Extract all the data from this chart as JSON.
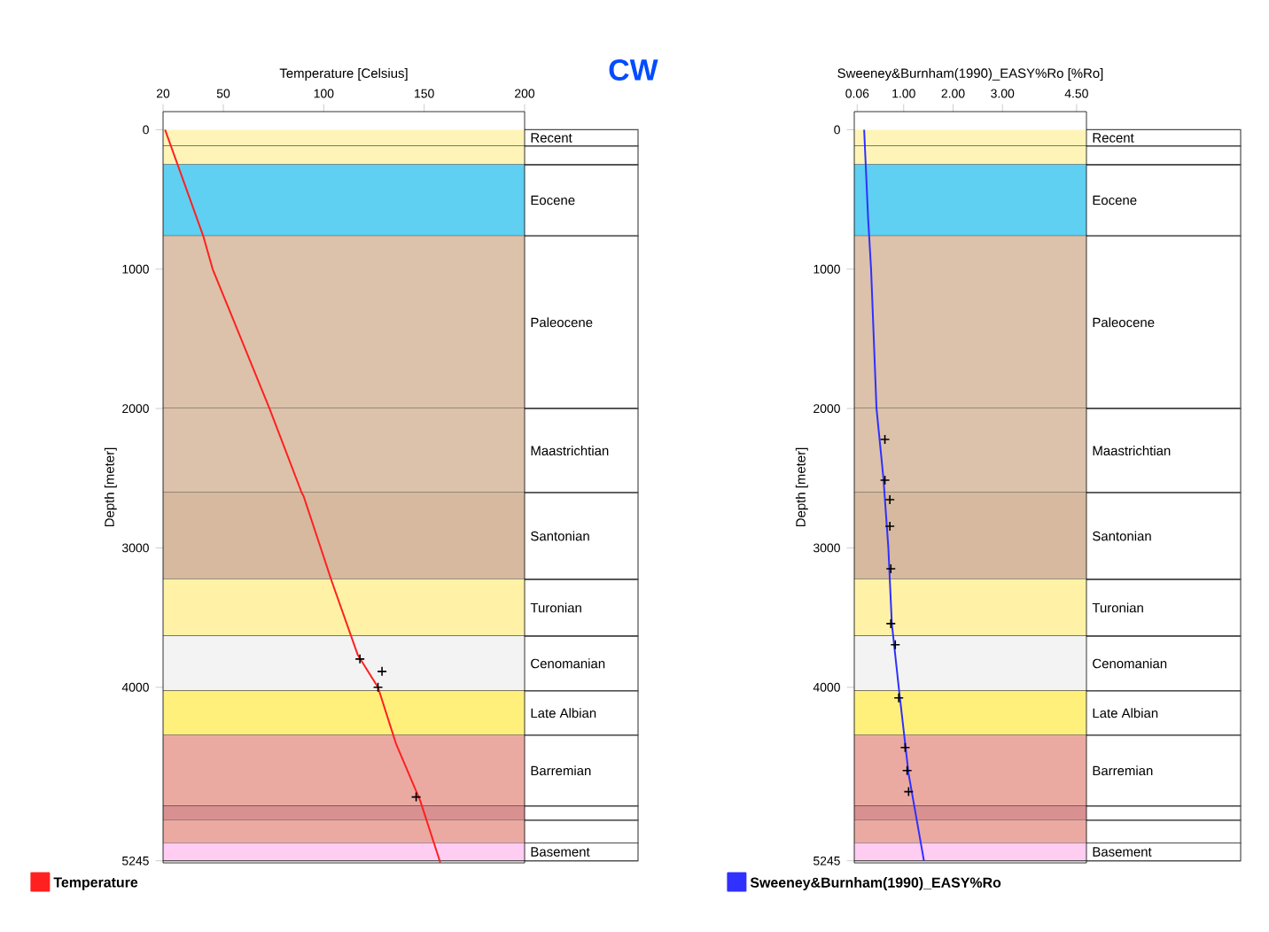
{
  "chart_data": [
    {
      "type": "line",
      "xlabel": "Temperature [Celsius]",
      "ylabel": "Depth [meter]",
      "xlim": [
        20,
        200
      ],
      "xticks": [
        20,
        50,
        100,
        150,
        200
      ],
      "ylim": [
        5260,
        -130
      ],
      "yticks": [
        0,
        1000,
        2000,
        3000,
        4000,
        5245
      ],
      "legend": "bottom left",
      "annotations": [
        "CW"
      ],
      "series": [
        {
          "name": "Temperature",
          "color": "#ff2020",
          "x": [
            21,
            40,
            44.7,
            73,
            89,
            90,
            104,
            117,
            127,
            136,
            148,
            158
          ],
          "values": [
            0,
            762,
            1000,
            2000,
            2603,
            2630,
            3240,
            3770,
            4000,
            4406,
            4813,
            5257
          ]
        },
        {
          "type": "scatter",
          "marker": "cross",
          "color": "#000000",
          "x": [
            118,
            129,
            127,
            146
          ],
          "values": [
            3797,
            3886,
            4000,
            4787
          ]
        }
      ],
      "bands": [
        {
          "axis": "y",
          "from": 0,
          "to": 116,
          "label": "Recent",
          "color": "#fff4b8"
        },
        {
          "axis": "y",
          "from": 116,
          "to": 250,
          "label": null,
          "color": "#fff4b8"
        },
        {
          "axis": "y",
          "from": 250,
          "to": 762,
          "label": "Eocene",
          "color": "#5fd0f2"
        },
        {
          "axis": "y",
          "from": 762,
          "to": 2000,
          "label": "Paleocene",
          "color": "#dcc2aa"
        },
        {
          "axis": "y",
          "from": 2000,
          "to": 2603,
          "label": "Maastrichtian",
          "color": "#dcc2aa"
        },
        {
          "axis": "y",
          "from": 2603,
          "to": 3225,
          "label": "Santonian",
          "color": "#d6b99e"
        },
        {
          "axis": "y",
          "from": 3225,
          "to": 3632,
          "label": "Turonian",
          "color": "#fff2a6"
        },
        {
          "axis": "y",
          "from": 3632,
          "to": 4025,
          "label": "Cenomanian",
          "color": "#f3f3f3"
        },
        {
          "axis": "y",
          "from": 4025,
          "to": 4343,
          "label": "Late Albian",
          "color": "#fff07c"
        },
        {
          "axis": "y",
          "from": 4343,
          "to": 4851,
          "label": "Barremian",
          "color": "#eaaaa2"
        },
        {
          "axis": "y",
          "from": 4851,
          "to": 4952,
          "label": null,
          "color": "#d99090"
        },
        {
          "axis": "y",
          "from": 4952,
          "to": 5117,
          "label": null,
          "color": "#eaaaa2"
        },
        {
          "axis": "y",
          "from": 5117,
          "to": 5245,
          "label": "Basement",
          "color": "#ffccf2"
        }
      ]
    },
    {
      "type": "line",
      "xlabel": "Sweeney&Burnham(1990)_EASY%Ro [%Ro]",
      "ylabel": "Depth [meter]",
      "xlim": [
        0,
        4.7
      ],
      "xticks": [
        {
          "value": 0.06,
          "label": "0.06"
        },
        {
          "value": 1,
          "label": "1.00"
        },
        {
          "value": 2,
          "label": "2.00"
        },
        {
          "value": 3,
          "label": "3.00"
        },
        {
          "value": 4.5,
          "label": "4.50"
        }
      ],
      "ylim": [
        5260,
        -130
      ],
      "yticks": [
        0,
        1000,
        2000,
        3000,
        4000,
        5245
      ],
      "legend": "bottom left",
      "series": [
        {
          "name": "Sweeney&Burnham(1990)_EASY%Ro",
          "color": "#3030ff",
          "x": [
            0.2,
            0.28,
            0.34,
            0.45,
            0.59,
            0.69,
            0.76,
            0.9,
            1.1,
            1.41
          ],
          "values": [
            0,
            635,
            1000,
            2000,
            2500,
            3000,
            3543,
            4000,
            4622,
            5245
          ]
        },
        {
          "type": "scatter",
          "marker": "cross",
          "color": "#000000",
          "x": [
            0.62,
            0.62,
            0.72,
            0.72,
            0.74,
            0.74,
            0.83,
            0.9,
            1.03,
            1.07,
            1.1
          ],
          "values": [
            2222,
            2514,
            2654,
            2845,
            3150,
            3543,
            3695,
            4076,
            4432,
            4597,
            4749
          ]
        }
      ],
      "bands": [
        {
          "axis": "y",
          "from": 0,
          "to": 116,
          "label": "Recent",
          "color": "#fff4b8"
        },
        {
          "axis": "y",
          "from": 116,
          "to": 250,
          "label": null,
          "color": "#fff4b8"
        },
        {
          "axis": "y",
          "from": 250,
          "to": 762,
          "label": "Eocene",
          "color": "#5fd0f2"
        },
        {
          "axis": "y",
          "from": 762,
          "to": 2000,
          "label": "Paleocene",
          "color": "#dcc2aa"
        },
        {
          "axis": "y",
          "from": 2000,
          "to": 2603,
          "label": "Maastrichtian",
          "color": "#dcc2aa"
        },
        {
          "axis": "y",
          "from": 2603,
          "to": 3225,
          "label": "Santonian",
          "color": "#d6b99e"
        },
        {
          "axis": "y",
          "from": 3225,
          "to": 3632,
          "label": "Turonian",
          "color": "#fff2a6"
        },
        {
          "axis": "y",
          "from": 3632,
          "to": 4025,
          "label": "Cenomanian",
          "color": "#f3f3f3"
        },
        {
          "axis": "y",
          "from": 4025,
          "to": 4343,
          "label": "Late Albian",
          "color": "#fff07c"
        },
        {
          "axis": "y",
          "from": 4343,
          "to": 4851,
          "label": "Barremian",
          "color": "#eaaaa2"
        },
        {
          "axis": "y",
          "from": 4851,
          "to": 4952,
          "label": null,
          "color": "#d99090"
        },
        {
          "axis": "y",
          "from": 4952,
          "to": 5117,
          "label": null,
          "color": "#eaaaa2"
        },
        {
          "axis": "y",
          "from": 5117,
          "to": 5245,
          "label": "Basement",
          "color": "#ffccf2"
        }
      ]
    }
  ]
}
